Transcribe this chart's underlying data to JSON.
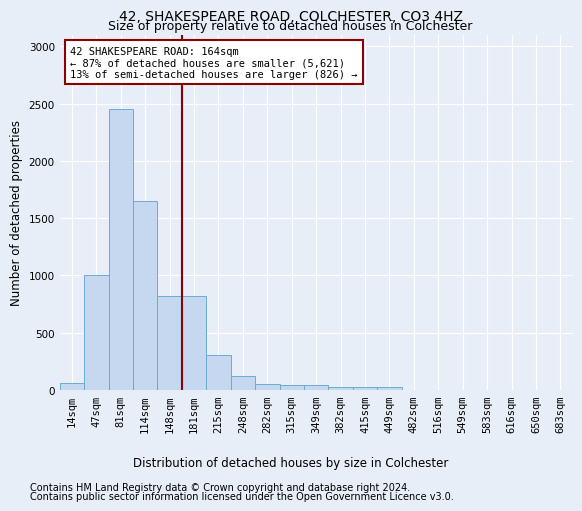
{
  "title": "42, SHAKESPEARE ROAD, COLCHESTER, CO3 4HZ",
  "subtitle": "Size of property relative to detached houses in Colchester",
  "xlabel": "Distribution of detached houses by size in Colchester",
  "ylabel": "Number of detached properties",
  "footer1": "Contains HM Land Registry data © Crown copyright and database right 2024.",
  "footer2": "Contains public sector information licensed under the Open Government Licence v3.0.",
  "categories": [
    "14sqm",
    "47sqm",
    "81sqm",
    "114sqm",
    "148sqm",
    "181sqm",
    "215sqm",
    "248sqm",
    "282sqm",
    "315sqm",
    "349sqm",
    "382sqm",
    "415sqm",
    "449sqm",
    "482sqm",
    "516sqm",
    "549sqm",
    "583sqm",
    "616sqm",
    "650sqm",
    "683sqm"
  ],
  "values": [
    60,
    1000,
    2450,
    1650,
    825,
    825,
    305,
    125,
    55,
    45,
    45,
    25,
    30,
    30,
    0,
    0,
    0,
    0,
    0,
    0,
    0
  ],
  "bar_color": "#c5d8f0",
  "bar_edge_color": "#6aabd2",
  "annotation_line1": "42 SHAKESPEARE ROAD: 164sqm",
  "annotation_line2": "← 87% of detached houses are smaller (5,621)",
  "annotation_line3": "13% of semi-detached houses are larger (826) →",
  "annotation_box_color": "#ffffff",
  "annotation_border_color": "#8b0000",
  "vline_color": "#8b0000",
  "ylim": [
    0,
    3100
  ],
  "yticks": [
    0,
    500,
    1000,
    1500,
    2000,
    2500,
    3000
  ],
  "bg_color": "#e8eef8",
  "grid_color": "#ffffff",
  "title_fontsize": 10,
  "subtitle_fontsize": 9,
  "axis_label_fontsize": 8.5,
  "tick_fontsize": 7.5,
  "annotation_fontsize": 7.5,
  "footer_fontsize": 7.0
}
